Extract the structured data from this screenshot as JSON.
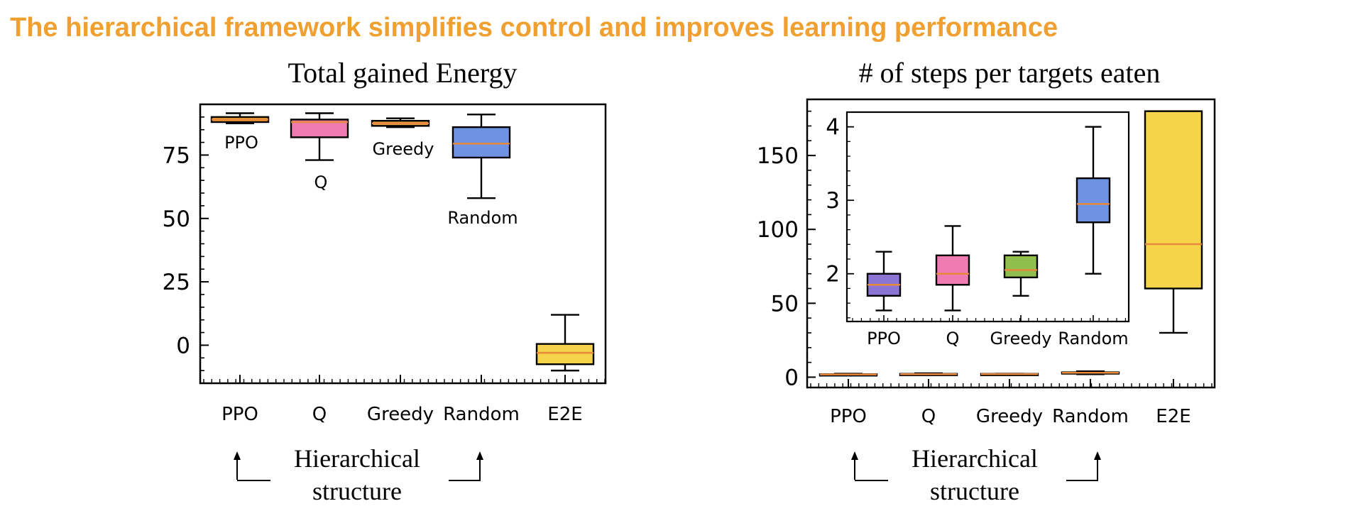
{
  "headline": "The hierarchical framework simplifies control and improves learning performance",
  "annotation": {
    "line1": "Hierarchical",
    "line2": "structure"
  },
  "colors": {
    "PPO": "#ED9B2E",
    "Q": "#EE7BB2",
    "Greedy": "#EDA54A",
    "Random": "#6F93E2",
    "E2E": "#F5D34A",
    "median": "#E8883A",
    "inset_PPO": "#8B74D4",
    "inset_Q": "#EE7BB2",
    "inset_Greedy": "#8FBE4E",
    "inset_Random": "#6F93E2",
    "headline": "#F0A030"
  },
  "chart_data": [
    {
      "type": "box",
      "title": "Total gained Energy",
      "categories": [
        "PPO",
        "Q",
        "Greedy",
        "Random",
        "E2E"
      ],
      "box_labels": [
        "PPO",
        "Q",
        "Greedy",
        "",
        "Random"
      ],
      "yticks": [
        0,
        25,
        50,
        75
      ],
      "ylim": [
        -15,
        95
      ],
      "boxes": [
        {
          "name": "PPO",
          "whislo": 87.5,
          "q1": 88.0,
          "med": 89.0,
          "q3": 90.0,
          "whishi": 91.5
        },
        {
          "name": "Q",
          "whislo": 73.0,
          "q1": 82.0,
          "med": 88.0,
          "q3": 89.0,
          "whishi": 91.5
        },
        {
          "name": "Greedy",
          "whislo": 86.0,
          "q1": 86.5,
          "med": 87.5,
          "q3": 88.5,
          "whishi": 89.5
        },
        {
          "name": "Random",
          "whislo": 58.0,
          "q1": 74.0,
          "med": 79.5,
          "q3": 86.0,
          "whishi": 91.0
        },
        {
          "name": "E2E",
          "whislo": -10.0,
          "q1": -7.5,
          "med": -3.0,
          "q3": 0.5,
          "whishi": 12.0
        }
      ]
    },
    {
      "type": "box",
      "title": "# of steps per targets eaten",
      "categories": [
        "PPO",
        "Q",
        "Greedy",
        "Random",
        "E2E"
      ],
      "yticks": [
        0,
        50,
        100,
        150
      ],
      "ylim": [
        -7,
        188
      ],
      "boxes": [
        {
          "name": "PPO",
          "whislo": 1.5,
          "q1": 1.7,
          "med": 1.85,
          "q3": 2.0,
          "whishi": 2.3
        },
        {
          "name": "Q",
          "whislo": 1.5,
          "q1": 1.85,
          "med": 2.0,
          "q3": 2.25,
          "whishi": 2.65
        },
        {
          "name": "Greedy",
          "whislo": 1.7,
          "q1": 1.95,
          "med": 2.05,
          "q3": 2.25,
          "whishi": 2.3
        },
        {
          "name": "Random",
          "whislo": 2.0,
          "q1": 2.7,
          "med": 2.95,
          "q3": 3.3,
          "whishi": 4.0
        },
        {
          "name": "E2E",
          "whislo": 30.0,
          "q1": 60.0,
          "med": 90.0,
          "q3": 180.0,
          "whishi": 180.0
        }
      ],
      "inset": {
        "categories": [
          "PPO",
          "Q",
          "Greedy",
          "Random"
        ],
        "yticks": [
          2,
          3,
          4
        ],
        "ylim": [
          1.35,
          4.2
        ],
        "boxes": [
          {
            "name": "PPO",
            "whislo": 1.5,
            "q1": 1.7,
            "med": 1.85,
            "q3": 2.0,
            "whishi": 2.3
          },
          {
            "name": "Q",
            "whislo": 1.5,
            "q1": 1.85,
            "med": 2.0,
            "q3": 2.25,
            "whishi": 2.65
          },
          {
            "name": "Greedy",
            "whislo": 1.7,
            "q1": 1.95,
            "med": 2.05,
            "q3": 2.25,
            "whishi": 2.3
          },
          {
            "name": "Random",
            "whislo": 2.0,
            "q1": 2.7,
            "med": 2.95,
            "q3": 3.3,
            "whishi": 4.0
          }
        ]
      }
    }
  ]
}
